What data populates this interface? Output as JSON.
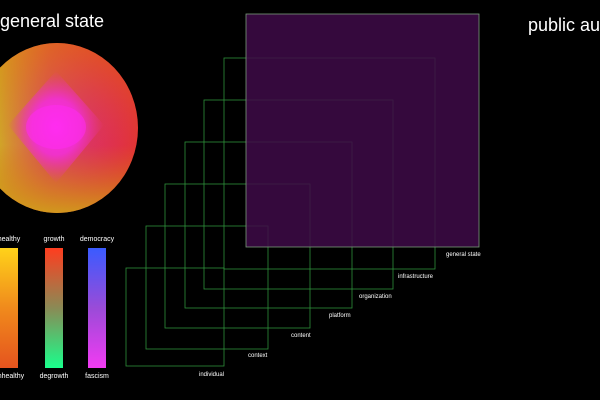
{
  "titles": {
    "left": "general state",
    "right": "public au"
  },
  "scales": [
    {
      "top": "healthy",
      "bottom": "unhealthy",
      "gradient": [
        "#ffd21a",
        "#f08a1c",
        "#e5541e"
      ]
    },
    {
      "top": "growth",
      "bottom": "degrowth",
      "gradient": [
        "#ff3d1f",
        "#8a8a55",
        "#19ff8c"
      ]
    },
    {
      "top": "democracy",
      "bottom": "fascism",
      "gradient": [
        "#3a5bff",
        "#9a4bd8",
        "#f23bf2"
      ]
    }
  ],
  "layers": [
    {
      "label": "individual"
    },
    {
      "label": "context"
    },
    {
      "label": "content"
    },
    {
      "label": "platform"
    },
    {
      "label": "organization"
    },
    {
      "label": "infrastructure"
    },
    {
      "label": "general state"
    }
  ],
  "colors": {
    "background": "#000000",
    "layer_stroke": "#2e8f3a",
    "general_state_fill": "#3e0a48",
    "general_state_stroke": "#7a9a7a"
  }
}
